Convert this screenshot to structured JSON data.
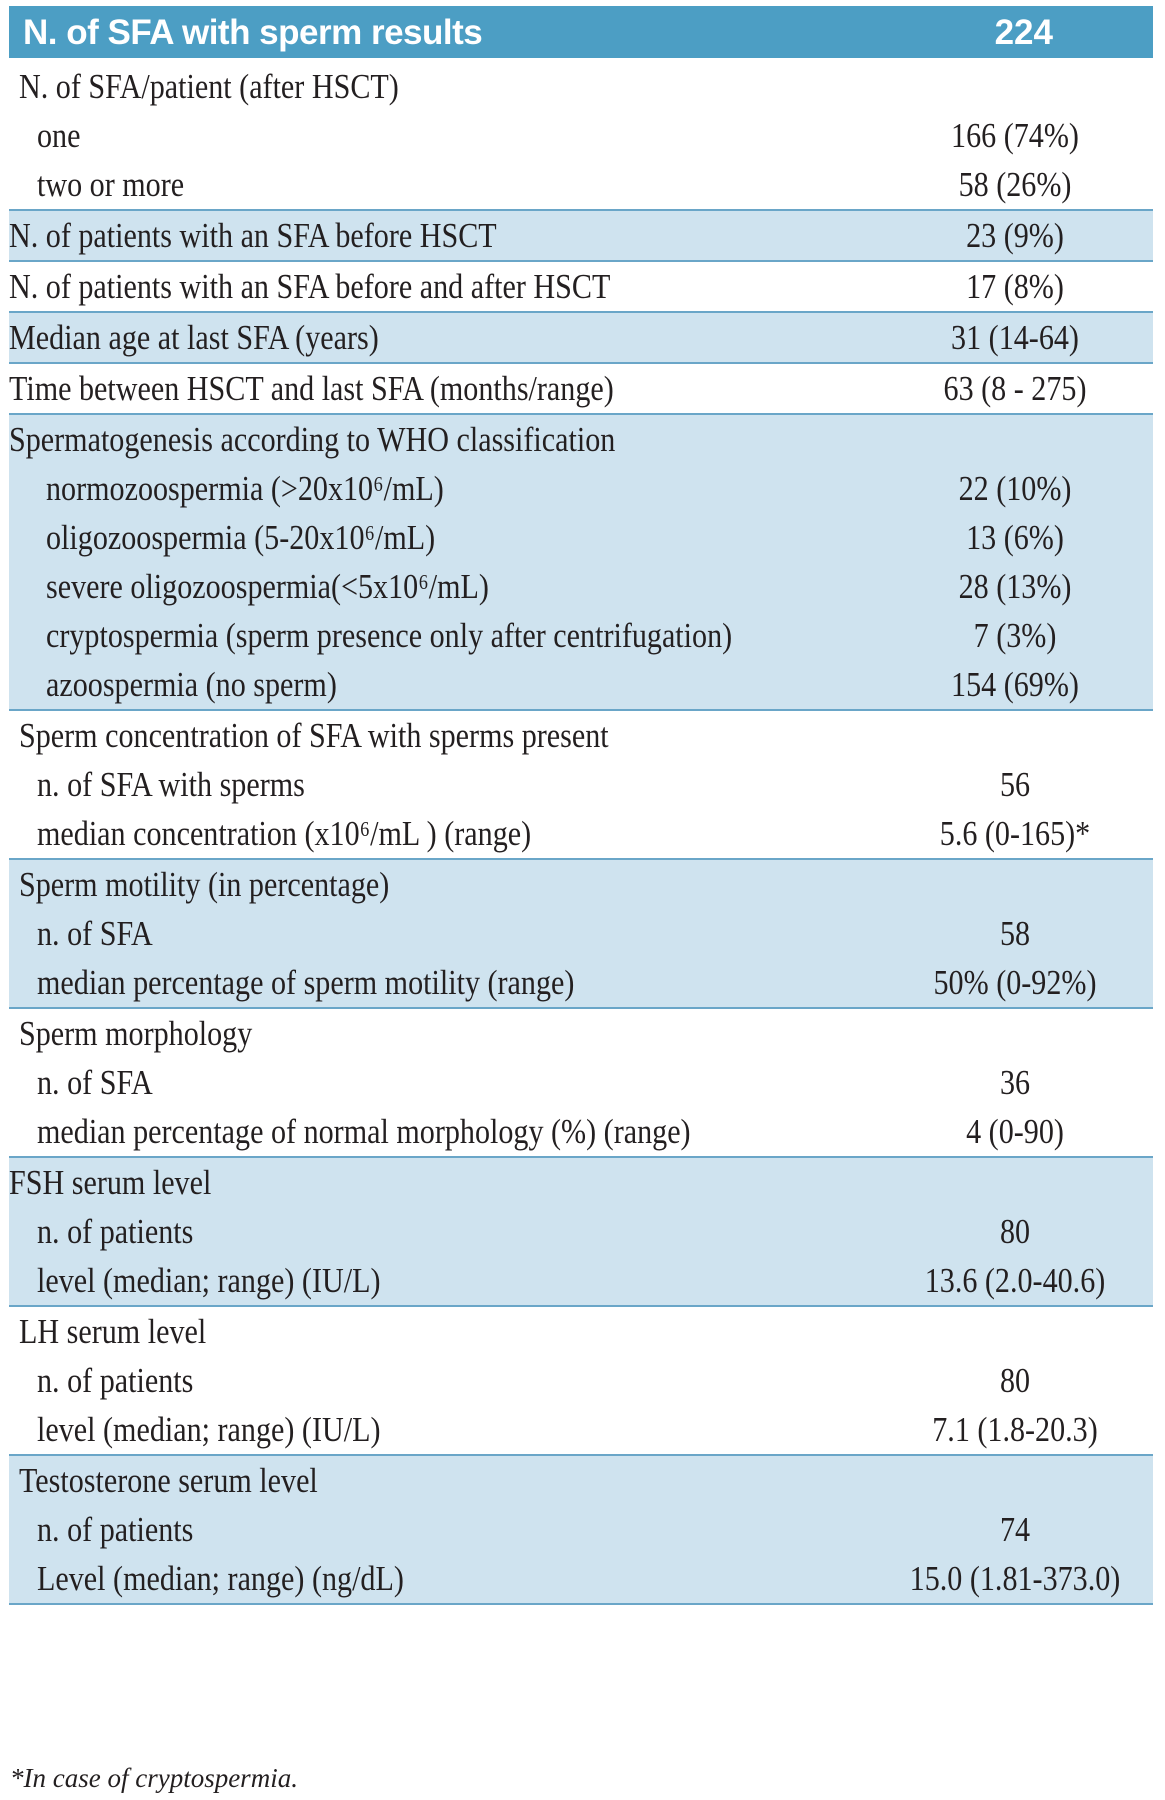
{
  "header": {
    "label": "N. of SFA with sperm results",
    "value": "224"
  },
  "sections": [
    {
      "shaded": false,
      "rows": [
        {
          "indent": "lvl0b",
          "label": "N. of SFA/patient (after HSCT)",
          "value": ""
        },
        {
          "indent": "lvl1",
          "label": "one",
          "value": "166 (74%)"
        },
        {
          "indent": "lvl1",
          "label": "two or more",
          "value": "58 (26%)"
        }
      ]
    },
    {
      "shaded": true,
      "rows": [
        {
          "indent": "lvl0",
          "label": "N. of patients with an SFA before HSCT",
          "value": "23 (9%)"
        }
      ]
    },
    {
      "shaded": false,
      "rows": [
        {
          "indent": "lvl0",
          "label": "N. of patients with an SFA before and after HSCT",
          "value": "17 (8%)"
        }
      ]
    },
    {
      "shaded": true,
      "rows": [
        {
          "indent": "lvl0",
          "label": "Median age at last SFA (years)",
          "value": "31 (14-64)"
        }
      ]
    },
    {
      "shaded": false,
      "rows": [
        {
          "indent": "lvl0",
          "label": "Time between HSCT and last SFA (months/range)",
          "value": "63 (8 - 275)"
        }
      ]
    },
    {
      "shaded": true,
      "rows": [
        {
          "indent": "lvl0",
          "label": "Spermatogenesis according to WHO classification",
          "value": ""
        },
        {
          "indent": "lvl2",
          "label": "normozoospermia (>20x10⁶/mL)",
          "value": "22 (10%)"
        },
        {
          "indent": "lvl2",
          "label": "oligozoospermia (5-20x10⁶/mL)",
          "value": "13 (6%)"
        },
        {
          "indent": "lvl2",
          "label": "severe oligozoospermia(<5x10⁶/mL)",
          "value": "28 (13%)"
        },
        {
          "indent": "lvl2",
          "label": "cryptospermia (sperm presence only after centrifugation)",
          "value": "7 (3%)"
        },
        {
          "indent": "lvl2",
          "label": "azoospermia (no sperm)",
          "value": "154 (69%)"
        }
      ]
    },
    {
      "shaded": false,
      "rows": [
        {
          "indent": "lvl0b",
          "label": "Sperm concentration of SFA with sperms present",
          "value": ""
        },
        {
          "indent": "lvl1",
          "label": "n. of SFA with sperms",
          "value": "56"
        },
        {
          "indent": "lvl1",
          "label": "median concentration (x10⁶/mL ) (range)",
          "value": "5.6 (0-165)*"
        }
      ]
    },
    {
      "shaded": true,
      "rows": [
        {
          "indent": "lvl0b",
          "label": "Sperm motility (in percentage)",
          "value": ""
        },
        {
          "indent": "lvl1",
          "label": "n. of SFA",
          "value": "58"
        },
        {
          "indent": "lvl1",
          "label": "median percentage of sperm motility (range)",
          "value": "50% (0-92%)"
        }
      ]
    },
    {
      "shaded": false,
      "rows": [
        {
          "indent": "lvl0b",
          "label": "Sperm morphology",
          "value": ""
        },
        {
          "indent": "lvl1",
          "label": "n. of SFA",
          "value": "36"
        },
        {
          "indent": "lvl1",
          "label": "median percentage of normal morphology (%) (range)",
          "value": "4 (0-90)"
        }
      ]
    },
    {
      "shaded": true,
      "rows": [
        {
          "indent": "lvl0",
          "label": "FSH serum level",
          "value": ""
        },
        {
          "indent": "lvl1",
          "label": "n. of patients",
          "value": "80"
        },
        {
          "indent": "lvl1",
          "label": "level (median; range) (IU/L)",
          "value": "13.6 (2.0-40.6)"
        }
      ]
    },
    {
      "shaded": false,
      "rows": [
        {
          "indent": "lvl0b",
          "label": "LH serum level",
          "value": ""
        },
        {
          "indent": "lvl1",
          "label": "n. of patients",
          "value": "80"
        },
        {
          "indent": "lvl1",
          "label": "level (median; range) (IU/L)",
          "value": "7.1 (1.8-20.3)"
        }
      ]
    },
    {
      "shaded": true,
      "rows": [
        {
          "indent": "lvl0b",
          "label": "Testosterone serum level",
          "value": ""
        },
        {
          "indent": "lvl1",
          "label": "n. of patients",
          "value": "74"
        },
        {
          "indent": "lvl1",
          "label": "Level (median; range) (ng/dL)",
          "value": "15.0 (1.81-373.0)"
        }
      ]
    }
  ],
  "footnote": "*In case of cryptospermia."
}
